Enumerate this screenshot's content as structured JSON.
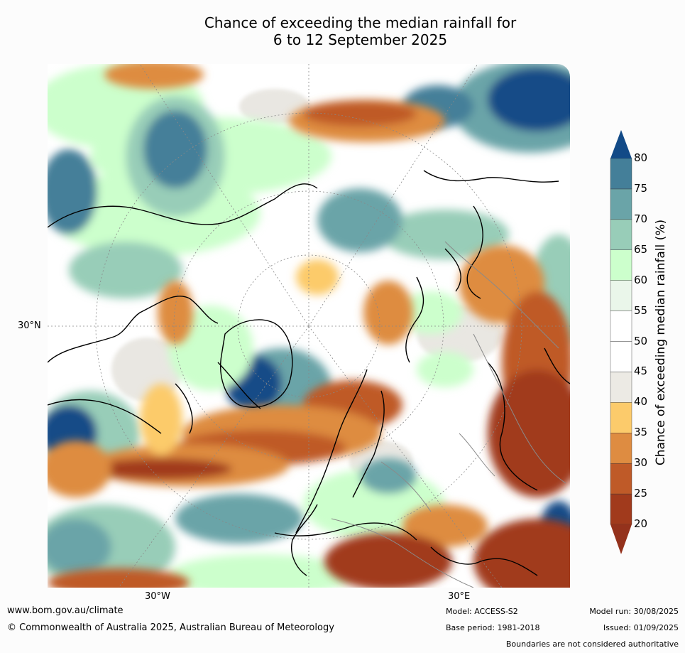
{
  "title_line1": "Chance of exceeding the median rainfall for",
  "title_line2": "6 to 12 September 2025",
  "axes": {
    "lat_label": "30°N",
    "lon_label_west": "30°W",
    "lon_label_east": "30°E"
  },
  "colorbar": {
    "label": "Chance of exceeding median rainfall (%)",
    "ticks": [
      "20",
      "25",
      "30",
      "35",
      "40",
      "45",
      "50",
      "55",
      "60",
      "65",
      "70",
      "75",
      "80"
    ],
    "colors": [
      "#a13a1c",
      "#bf5a28",
      "#de8c41",
      "#fccb6b",
      "#eceae4",
      "#ffffff",
      "#ffffff",
      "#eaf6ea",
      "#ccffcc",
      "#98cdb8",
      "#6aa4a8",
      "#447f99",
      "#184c87"
    ],
    "over_color": "#124a87",
    "under_color": "#94321c"
  },
  "footer": {
    "website": "www.bom.gov.au/climate",
    "copyright": "© Commonwealth of Australia 2025, Australian Bureau of Meteorology",
    "model": "Model: ACCESS-S2",
    "base_period": "Base period: 1981-2018",
    "model_run": "Model run: 30/08/2025",
    "issued": "Issued: 01/09/2025",
    "disclaimer": "Boundaries are not considered authoritative"
  }
}
